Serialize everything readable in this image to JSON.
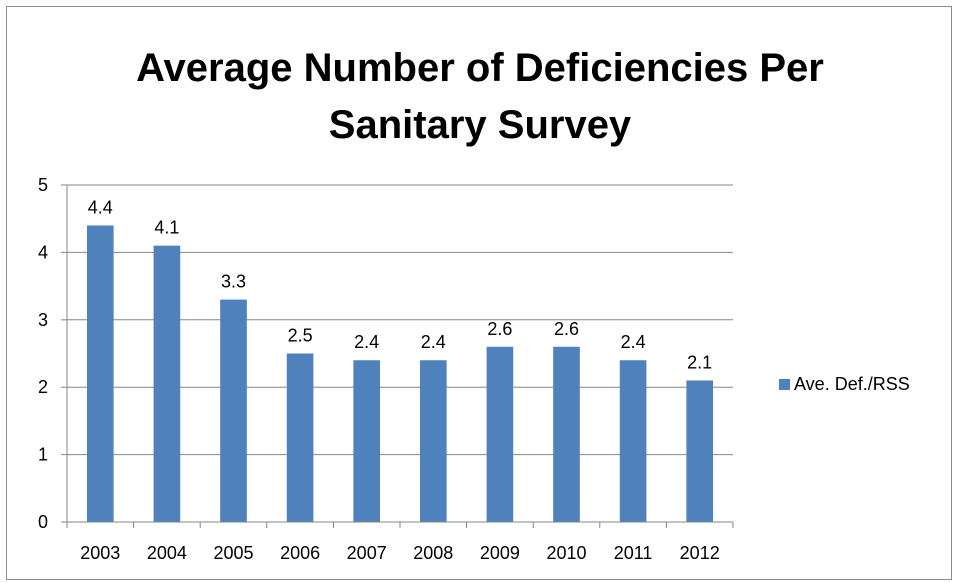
{
  "chart_data": {
    "type": "bar",
    "title": "Average Number of  Deficiencies Per\nSanitary Survey",
    "xlabel": "",
    "ylabel": "",
    "categories": [
      "2003",
      "2004",
      "2005",
      "2006",
      "2007",
      "2008",
      "2009",
      "2010",
      "2011",
      "2012"
    ],
    "series": [
      {
        "name": "Ave. Def./RSS",
        "values": [
          4.4,
          4.1,
          3.3,
          2.5,
          2.4,
          2.4,
          2.6,
          2.6,
          2.4,
          2.1
        ],
        "color": "#4F81BD"
      }
    ],
    "data_labels": [
      "4.4",
      "4.1",
      "3.3",
      "2.5",
      "2.4",
      "2.4",
      "2.6",
      "2.6",
      "2.4",
      "2.1"
    ],
    "ylim": [
      0,
      5
    ],
    "yticks": [
      "0",
      "1",
      "2",
      "3",
      "4",
      "5"
    ],
    "grid": true,
    "legend_position": "right",
    "colors": {
      "bar": "#4F81BD",
      "gridline": "#868686",
      "axis": "#868686",
      "border": "#8c8c8c"
    }
  }
}
